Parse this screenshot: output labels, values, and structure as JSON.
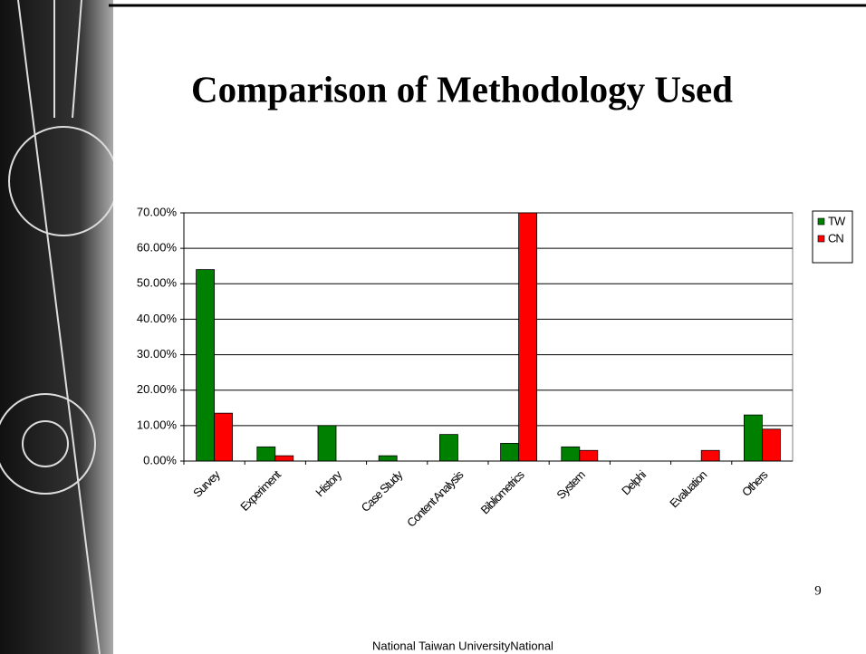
{
  "slide": {
    "page_number": "9",
    "footer": "National Taiwan UniversityNational"
  },
  "chart_data": {
    "type": "bar",
    "title": "Comparison of Methodology Used",
    "categories": [
      "Survey",
      "Experiment",
      "History",
      "Case Study",
      "Content Analysis",
      "Bibliometrics",
      "System",
      "Delphi",
      "Evaluation",
      "Others"
    ],
    "series": [
      {
        "name": "TW",
        "color": "#008000",
        "values": [
          54,
          4,
          10,
          1.5,
          7.5,
          5,
          4,
          0,
          0,
          13
        ]
      },
      {
        "name": "CN",
        "color": "#ff0000",
        "values": [
          13.5,
          1.5,
          0,
          0,
          0,
          70,
          3,
          0,
          3,
          9
        ]
      }
    ],
    "ylim": [
      0,
      70
    ],
    "yticks": [
      {
        "value": 0,
        "label": "0.00%"
      },
      {
        "value": 10,
        "label": "10.00%"
      },
      {
        "value": 20,
        "label": "20.00%"
      },
      {
        "value": 30,
        "label": "30.00%"
      },
      {
        "value": 40,
        "label": "40.00%"
      },
      {
        "value": 50,
        "label": "50.00%"
      },
      {
        "value": 60,
        "label": "60.00%"
      },
      {
        "value": 70,
        "label": "70.00%"
      }
    ],
    "grid": true,
    "legend": "right"
  }
}
